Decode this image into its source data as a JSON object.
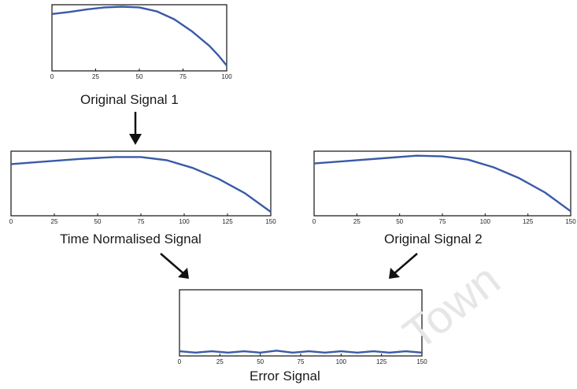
{
  "watermark": "Town",
  "chart_data": [
    {
      "type": "line",
      "id": "p1",
      "title": "Original Signal 1",
      "xlim": [
        0,
        100
      ],
      "xticks": [
        0,
        25,
        50,
        75,
        100
      ],
      "ylim": [
        0,
        1
      ],
      "series": [
        {
          "color": "#3a5aa8",
          "x": [
            0,
            10,
            20,
            30,
            40,
            50,
            60,
            70,
            80,
            90,
            95,
            100
          ],
          "y": [
            0.86,
            0.89,
            0.93,
            0.96,
            0.97,
            0.96,
            0.9,
            0.78,
            0.6,
            0.38,
            0.24,
            0.08
          ]
        }
      ]
    },
    {
      "type": "line",
      "id": "p2",
      "title": "Time Normalised Signal",
      "xlim": [
        0,
        150
      ],
      "xticks": [
        0,
        25,
        50,
        75,
        100,
        125,
        150
      ],
      "ylim": [
        0,
        1
      ],
      "series": [
        {
          "color": "#3a5aa8",
          "x": [
            0,
            20,
            40,
            60,
            75,
            90,
            105,
            120,
            135,
            150
          ],
          "y": [
            0.8,
            0.84,
            0.88,
            0.91,
            0.91,
            0.86,
            0.74,
            0.57,
            0.35,
            0.06
          ]
        }
      ]
    },
    {
      "type": "line",
      "id": "p3",
      "title": "Original Signal 2",
      "xlim": [
        0,
        150
      ],
      "xticks": [
        0,
        25,
        50,
        75,
        100,
        125,
        150
      ],
      "ylim": [
        0,
        1
      ],
      "series": [
        {
          "color": "#3a5aa8",
          "x": [
            0,
            20,
            40,
            60,
            75,
            90,
            105,
            120,
            135,
            150
          ],
          "y": [
            0.81,
            0.85,
            0.89,
            0.93,
            0.92,
            0.87,
            0.75,
            0.58,
            0.36,
            0.07
          ]
        }
      ]
    },
    {
      "type": "line",
      "id": "p4",
      "title": "Error Signal",
      "xlim": [
        0,
        150
      ],
      "xticks": [
        0,
        25,
        50,
        75,
        100,
        125,
        150
      ],
      "ylim": [
        0,
        1
      ],
      "series": [
        {
          "color": "#3a5aa8",
          "x": [
            0,
            10,
            20,
            30,
            40,
            50,
            60,
            70,
            80,
            90,
            100,
            110,
            120,
            130,
            140,
            150
          ],
          "y": [
            0.07,
            0.05,
            0.07,
            0.05,
            0.07,
            0.05,
            0.08,
            0.05,
            0.07,
            0.05,
            0.07,
            0.05,
            0.07,
            0.05,
            0.07,
            0.05
          ]
        }
      ]
    }
  ]
}
